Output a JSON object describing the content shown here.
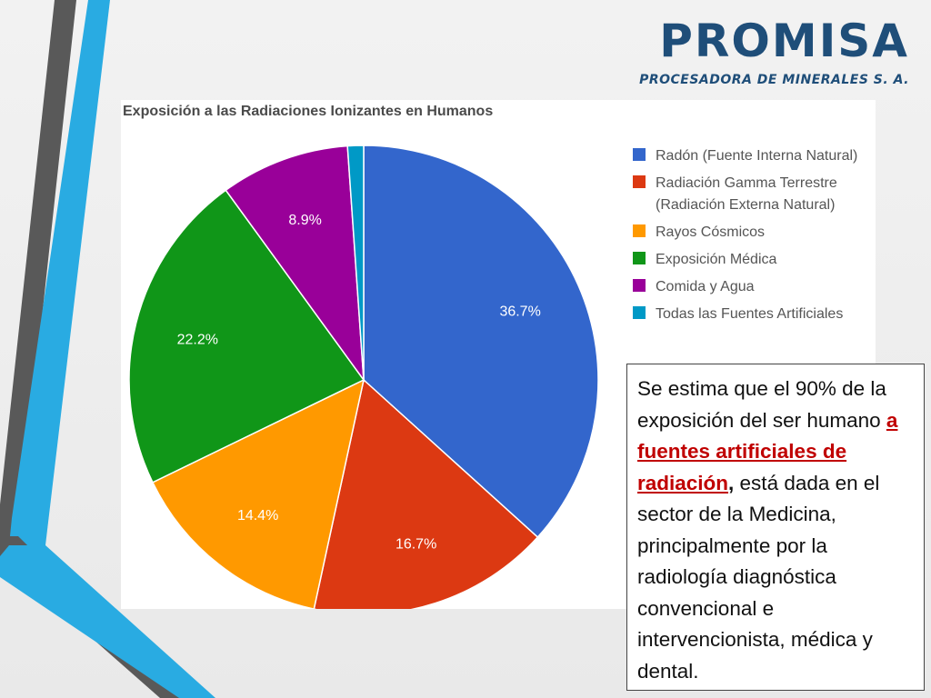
{
  "logo": {
    "title": "PROMISA",
    "subtitle": "PROCESADORA DE MINERALES  S. A."
  },
  "colors": {
    "brand": "#1f4e79",
    "accent_cyan": "#29abe2",
    "accent_grey": "#595959",
    "link_red": "#c00000"
  },
  "note": {
    "part1": "Se estima que el 90% de la exposición del ser humano ",
    "link": "a fuentes artificiales de radiación",
    "comma": ",",
    "part2": " está dada en el sector  de  la  Medicina, principalmente por la radiología diagnóstica convencional e intervencionista, médica y dental."
  },
  "chart_data": {
    "type": "pie",
    "title": "Exposición a las Radiaciones Ionizantes en Humanos",
    "legend_position": "right",
    "slices": [
      {
        "label": "Radón (Fuente Interna Natural)",
        "value": 36.7,
        "display": "36.7%",
        "color": "#3366cc"
      },
      {
        "label": "Radiación Gamma Terrestre\n(Radiación Externa Natural)",
        "value": 16.7,
        "display": "16.7%",
        "color": "#dc3912"
      },
      {
        "label": "Rayos Cósmicos",
        "value": 14.4,
        "display": "14.4%",
        "color": "#ff9900"
      },
      {
        "label": "Exposición Médica",
        "value": 22.2,
        "display": "22.2%",
        "color": "#109618"
      },
      {
        "label": "Comida y Agua",
        "value": 8.9,
        "display": "8.9%",
        "color": "#990099"
      },
      {
        "label": "Todas las Fuentes Artificiales",
        "value": 1.1,
        "display": "",
        "color": "#0099c6"
      }
    ]
  }
}
